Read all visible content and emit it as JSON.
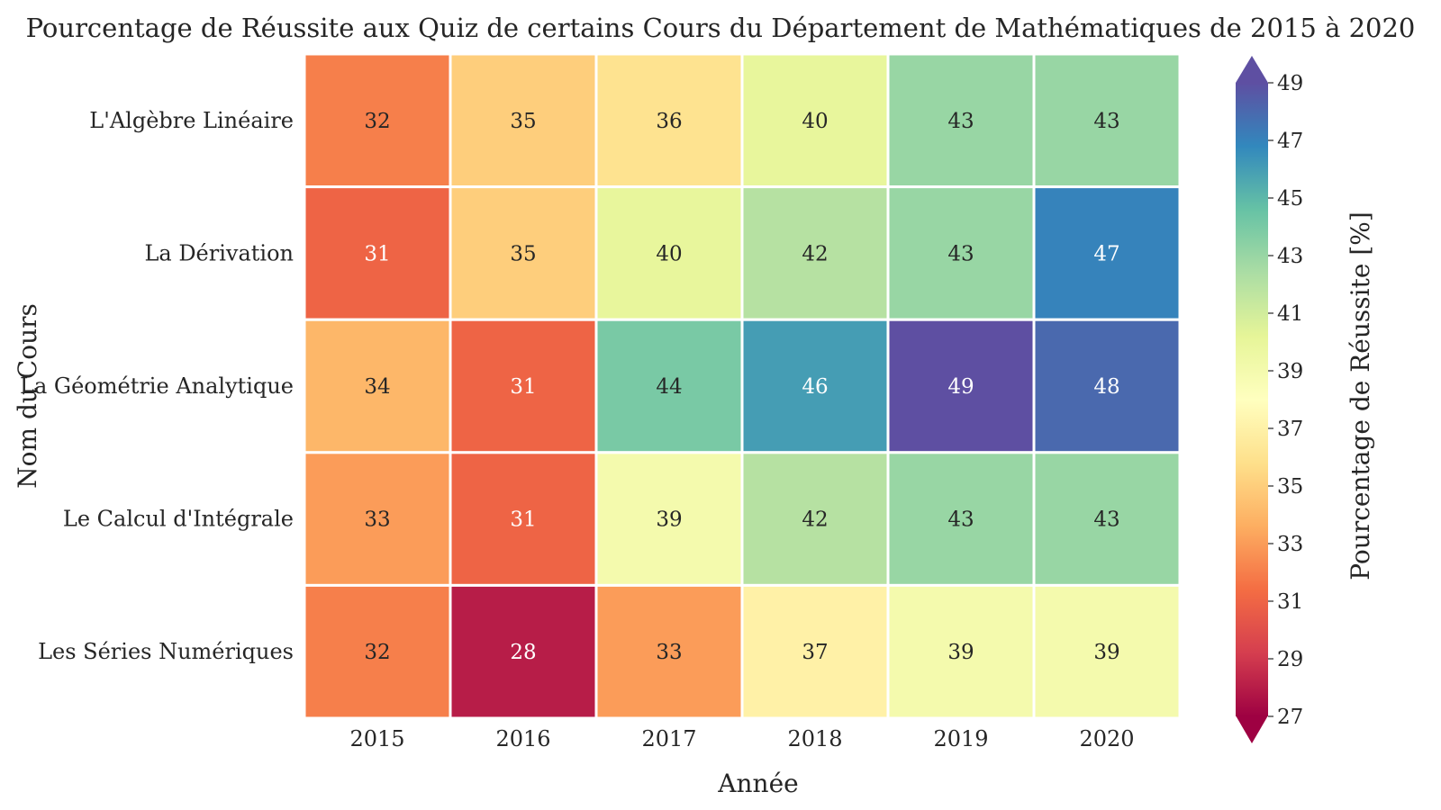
{
  "chart_data": {
    "type": "heatmap",
    "title": "Pourcentage de Réussite aux Quiz de certains Cours du Département de Mathématiques de 2015 à 2020",
    "xlabel": "Année",
    "ylabel": "Nom du Cours",
    "x": [
      "2015",
      "2016",
      "2017",
      "2018",
      "2019",
      "2020"
    ],
    "y": [
      "L'Algèbre Linéaire",
      "La Dérivation",
      "La Géométrie Analytique",
      "Le Calcul d'Intégrale",
      "Les Séries Numériques"
    ],
    "values": [
      [
        32,
        35,
        36,
        40,
        43,
        43
      ],
      [
        31,
        35,
        40,
        42,
        43,
        47
      ],
      [
        34,
        31,
        44,
        46,
        49,
        48
      ],
      [
        33,
        31,
        39,
        42,
        43,
        43
      ],
      [
        32,
        28,
        33,
        37,
        39,
        39
      ]
    ],
    "colorbar": {
      "label": "Pourcentage de Réussite [%]",
      "ticks": [
        27,
        29,
        31,
        33,
        35,
        37,
        39,
        41,
        43,
        45,
        47,
        49
      ],
      "range": [
        27,
        49
      ],
      "colormap": "Spectral",
      "extend": "both"
    },
    "grid": false
  }
}
